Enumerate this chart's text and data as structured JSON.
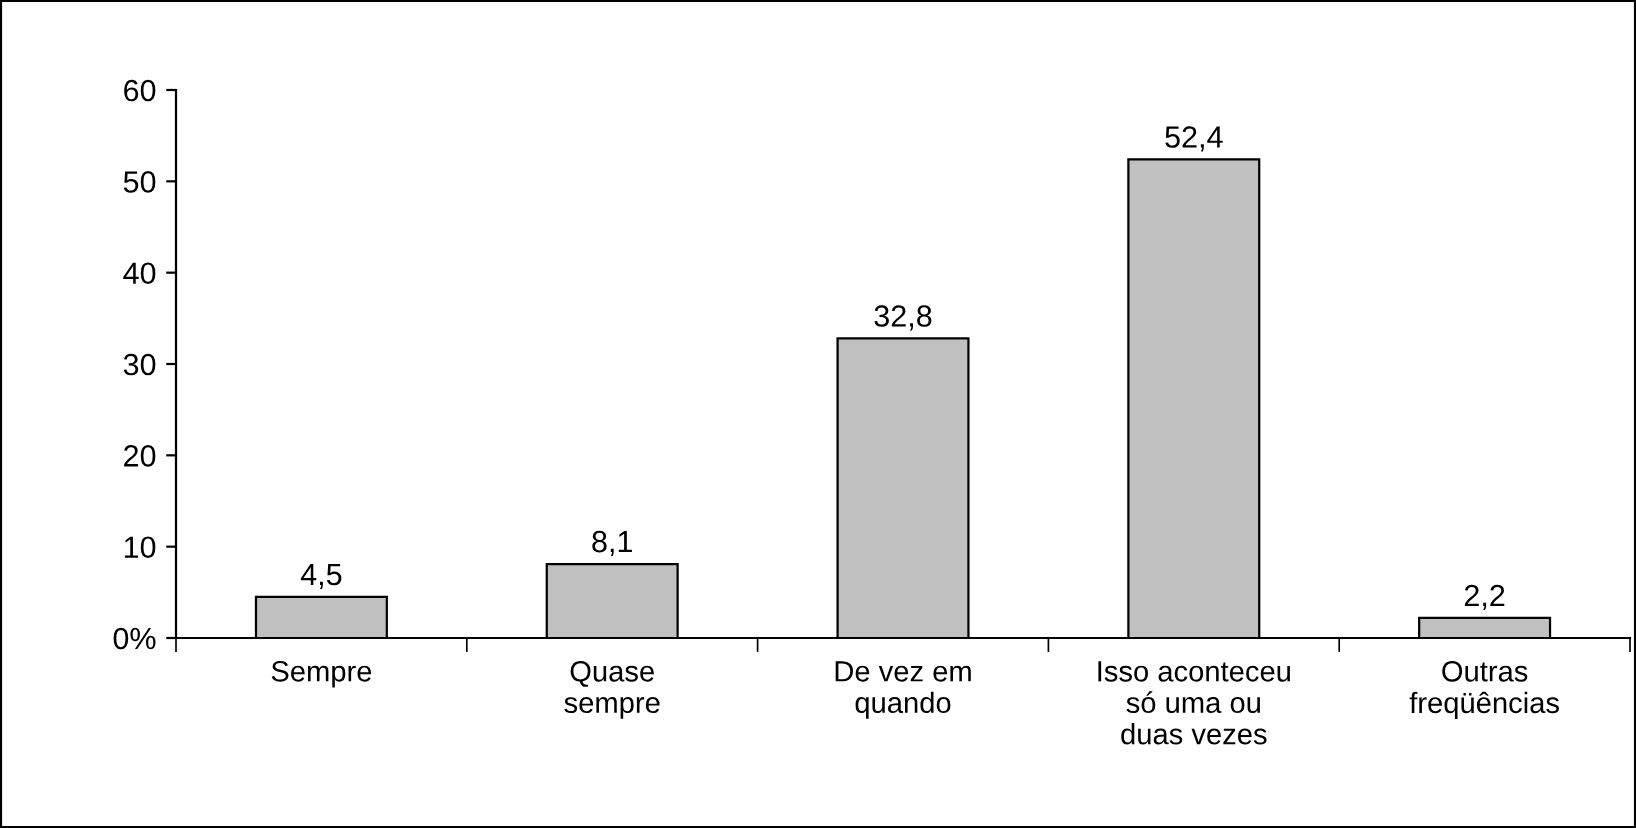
{
  "chart_data": {
    "type": "bar",
    "categories": [
      "Sempre",
      "Quase\nsempre",
      "De vez em\nquando",
      "Isso aconteceu\nsó uma ou\nduas vezes",
      "Outras\nfreqüências"
    ],
    "values": [
      4.5,
      8.1,
      32.8,
      52.4,
      2.2
    ],
    "value_labels": [
      "4,5",
      "8,1",
      "32,8",
      "52,4",
      "2,2"
    ],
    "color": "#c0c0c0",
    "ylim": [
      0,
      60
    ],
    "yticks": [
      {
        "value": 0,
        "label": "0%"
      },
      10,
      20,
      30,
      40,
      50,
      60
    ],
    "grid": false,
    "legend": false
  }
}
